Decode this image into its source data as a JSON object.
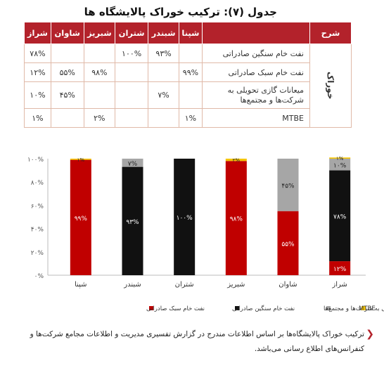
{
  "title": "جدول (۷): ترکیب خوراک پالایشگاه ها",
  "table": {
    "headers": [
      "شرح",
      "",
      "شپنا",
      "شبندر",
      "شتران",
      "شبریز",
      "شاوان",
      "شراز"
    ],
    "group_label": "خوراک",
    "rows": [
      {
        "label": "نفت خام سنگین صادراتی",
        "values": [
          "",
          "۹۳%",
          "۱۰۰%",
          "",
          "",
          "۷۸%"
        ]
      },
      {
        "label": "نفت خام سبک صادراتی",
        "values": [
          "۹۹%",
          "",
          "",
          "۹۸%",
          "۵۵%",
          "۱۲%"
        ]
      },
      {
        "label": "میعانات گازی تحویلی به شرکت‌ها و مجتمع‌ها",
        "values": [
          "",
          "۷%",
          "",
          "",
          "۴۵%",
          "۱۰%"
        ]
      },
      {
        "label": "MTBE",
        "values": [
          "۱%",
          "",
          "",
          "۲%",
          "",
          "۱%"
        ]
      }
    ]
  },
  "chart_data": {
    "type": "bar",
    "stacked": true,
    "categories": [
      "شپنا",
      "شبندر",
      "شتران",
      "شبریز",
      "شاوان",
      "شراز"
    ],
    "series": [
      {
        "name": "نفت خام سبک صادراتی",
        "color": "#c00000",
        "values": [
          99,
          0,
          0,
          98,
          55,
          12
        ],
        "labels": [
          "۹۹%",
          "",
          "",
          "۹۸%",
          "۵۵%",
          "۱۲%"
        ]
      },
      {
        "name": "نفت خام سنگین صادراتی",
        "color": "#111111",
        "values": [
          0,
          93,
          100,
          0,
          0,
          78
        ],
        "labels": [
          "",
          "۹۳%",
          "۱۰۰%",
          "",
          "",
          "۷۸%"
        ]
      },
      {
        "name": "میعانات گازی تحویلی به شرکت‌ها و مجتمع‌ها",
        "color": "#a6a6a6",
        "values": [
          0,
          7,
          0,
          0,
          45,
          10
        ],
        "labels": [
          "",
          "۷%",
          "",
          "",
          "۴۵%",
          "۱۰%"
        ]
      },
      {
        "name": "MTBE",
        "color": "#f5c400",
        "values": [
          1,
          0,
          0,
          2,
          0,
          1
        ],
        "labels": [
          "۱%",
          "",
          "",
          "۲%",
          "",
          "۱%"
        ]
      }
    ],
    "ylim": [
      0,
      100
    ],
    "yticks": [
      "۰%",
      "۲۰%",
      "۴۰%",
      "۶۰%",
      "۸۰%",
      "۱۰۰%"
    ],
    "legend_position": "bottom"
  },
  "footnote": "ترکیب خوراک پالایشگاه‌ها بر اساس اطلاعات مندرج در گزارش تفسیری مدیریت و اطلاعات مجامع شرکت‌ها و کنفرانس‌های اطلاع رسانی می‌باشد."
}
